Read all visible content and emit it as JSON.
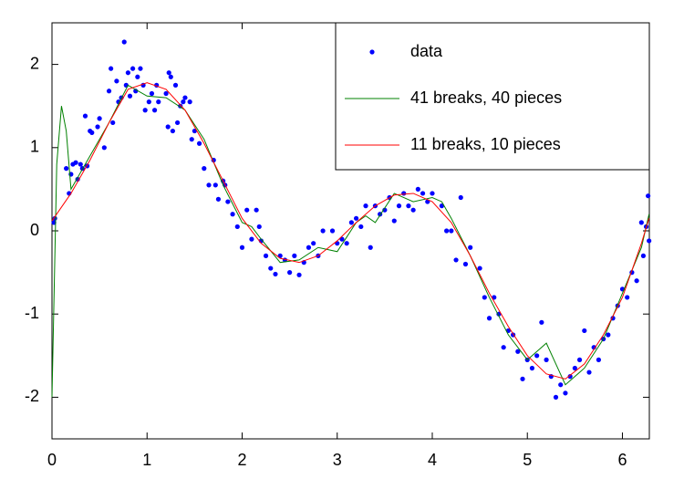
{
  "chart_data": {
    "type": "line",
    "xlim": [
      0,
      6.2832
    ],
    "ylim": [
      -2.5,
      2.5
    ],
    "xticks": [
      0,
      1,
      2,
      3,
      4,
      5,
      6
    ],
    "yticks": [
      -2,
      -1,
      0,
      1,
      2
    ],
    "legend": "upper right",
    "series": [
      {
        "name": "data",
        "color": "#0000ff",
        "style": "points",
        "x": [
          0.02,
          0.03,
          0.15,
          0.18,
          0.2,
          0.22,
          0.25,
          0.27,
          0.3,
          0.32,
          0.35,
          0.37,
          0.4,
          0.42,
          0.48,
          0.5,
          0.55,
          0.6,
          0.62,
          0.64,
          0.68,
          0.7,
          0.73,
          0.76,
          0.78,
          0.8,
          0.82,
          0.85,
          0.88,
          0.9,
          0.93,
          0.96,
          0.98,
          1.02,
          1.05,
          1.08,
          1.1,
          1.12,
          1.2,
          1.22,
          1.23,
          1.25,
          1.27,
          1.3,
          1.32,
          1.35,
          1.38,
          1.4,
          1.45,
          1.47,
          1.5,
          1.55,
          1.6,
          1.65,
          1.7,
          1.72,
          1.75,
          1.8,
          1.82,
          1.85,
          1.9,
          1.95,
          2.0,
          2.05,
          2.1,
          2.15,
          2.18,
          2.2,
          2.25,
          2.3,
          2.35,
          2.4,
          2.45,
          2.5,
          2.55,
          2.6,
          2.65,
          2.7,
          2.75,
          2.8,
          2.85,
          2.95,
          3.0,
          3.05,
          3.1,
          3.15,
          3.2,
          3.25,
          3.3,
          3.35,
          3.4,
          3.45,
          3.5,
          3.55,
          3.6,
          3.62,
          3.65,
          3.7,
          3.75,
          3.8,
          3.85,
          3.9,
          3.95,
          4.0,
          4.05,
          4.1,
          4.15,
          4.2,
          4.25,
          4.3,
          4.35,
          4.4,
          4.5,
          4.55,
          4.6,
          4.65,
          4.7,
          4.75,
          4.8,
          4.85,
          4.9,
          4.95,
          5.0,
          5.05,
          5.1,
          5.15,
          5.2,
          5.25,
          5.3,
          5.35,
          5.4,
          5.45,
          5.5,
          5.55,
          5.6,
          5.65,
          5.7,
          5.75,
          5.8,
          5.85,
          5.9,
          5.95,
          6.0,
          6.05,
          6.1,
          6.15,
          6.2,
          6.22,
          6.25,
          6.27,
          6.28
        ],
        "values": [
          0.1,
          0.15,
          0.75,
          0.45,
          0.68,
          0.8,
          0.82,
          0.62,
          0.8,
          0.75,
          1.38,
          0.78,
          1.2,
          1.18,
          1.25,
          1.35,
          1.0,
          1.68,
          1.95,
          1.3,
          1.8,
          1.55,
          1.6,
          2.27,
          1.75,
          1.9,
          1.62,
          1.95,
          1.68,
          1.85,
          1.95,
          1.75,
          1.45,
          1.55,
          1.65,
          1.45,
          1.75,
          1.55,
          1.65,
          1.25,
          1.9,
          1.85,
          1.2,
          1.75,
          1.3,
          1.5,
          1.55,
          1.6,
          1.55,
          1.1,
          1.2,
          1.05,
          0.75,
          0.55,
          0.85,
          0.55,
          0.38,
          0.6,
          0.55,
          0.35,
          0.2,
          0.05,
          -0.2,
          0.25,
          -0.1,
          0.25,
          0.05,
          -0.12,
          -0.3,
          -0.45,
          -0.52,
          -0.3,
          -0.35,
          -0.5,
          -0.3,
          -0.53,
          -0.38,
          -0.2,
          -0.15,
          -0.3,
          0.0,
          0.0,
          -0.15,
          -0.1,
          -0.15,
          0.1,
          0.15,
          0.05,
          0.3,
          -0.2,
          0.3,
          0.2,
          0.25,
          0.4,
          0.12,
          0.85,
          0.3,
          0.45,
          0.3,
          0.25,
          0.5,
          0.45,
          0.35,
          0.45,
          0.78,
          0.3,
          0.0,
          0.0,
          -0.35,
          0.4,
          -0.4,
          -0.2,
          -0.45,
          -0.8,
          -1.05,
          -0.8,
          -1.0,
          -1.4,
          -1.2,
          -1.25,
          -1.45,
          -1.78,
          -1.55,
          -1.65,
          -1.5,
          -1.1,
          -1.55,
          -1.75,
          -2.0,
          -1.85,
          -1.95,
          -1.75,
          -1.65,
          -1.55,
          -1.2,
          -1.7,
          -1.4,
          -1.55,
          -1.3,
          -1.25,
          -1.05,
          -0.9,
          -0.7,
          -0.8,
          -0.5,
          -0.6,
          0.1,
          -0.3,
          0.05,
          0.42,
          -0.12
        ]
      },
      {
        "name": "41 breaks, 40 pieces",
        "color": "#008000",
        "style": "line",
        "x": [
          0,
          0.05,
          0.1,
          0.15,
          0.2,
          0.3,
          0.4,
          0.6,
          0.8,
          1.0,
          1.2,
          1.4,
          1.6,
          1.8,
          2.0,
          2.1,
          2.2,
          2.4,
          2.6,
          2.8,
          3.0,
          3.2,
          3.3,
          3.4,
          3.6,
          3.8,
          4.0,
          4.1,
          4.2,
          4.4,
          4.6,
          4.8,
          5.0,
          5.1,
          5.2,
          5.3,
          5.4,
          5.6,
          5.8,
          6.0,
          6.2,
          6.28
        ],
        "values": [
          -2.0,
          0.8,
          1.5,
          1.2,
          0.5,
          0.7,
          0.9,
          1.3,
          1.75,
          1.62,
          1.6,
          1.45,
          1.1,
          0.55,
          0.1,
          0.05,
          -0.1,
          -0.38,
          -0.35,
          -0.2,
          -0.25,
          0.1,
          0.18,
          0.1,
          0.45,
          0.35,
          0.4,
          0.35,
          0.15,
          -0.3,
          -0.8,
          -1.25,
          -1.55,
          -1.45,
          -1.35,
          -1.6,
          -1.85,
          -1.65,
          -1.3,
          -0.75,
          -0.2,
          0.2
        ]
      },
      {
        "name": "11 breaks, 10 pieces",
        "color": "#ff0000",
        "style": "line",
        "x": [
          0,
          0.2,
          0.4,
          0.6,
          0.8,
          1.0,
          1.2,
          1.4,
          1.6,
          1.8,
          2.0,
          2.2,
          2.4,
          2.6,
          2.8,
          3.0,
          3.2,
          3.4,
          3.6,
          3.8,
          4.0,
          4.2,
          4.4,
          4.6,
          4.8,
          5.0,
          5.2,
          5.4,
          5.6,
          5.8,
          6.0,
          6.2,
          6.28
        ],
        "values": [
          0.12,
          0.45,
          0.85,
          1.3,
          1.7,
          1.78,
          1.7,
          1.45,
          1.05,
          0.6,
          0.15,
          -0.15,
          -0.33,
          -0.38,
          -0.3,
          -0.12,
          0.1,
          0.3,
          0.43,
          0.45,
          0.35,
          0.1,
          -0.3,
          -0.75,
          -1.15,
          -1.5,
          -1.72,
          -1.78,
          -1.6,
          -1.25,
          -0.8,
          -0.15,
          0.15
        ]
      }
    ]
  }
}
